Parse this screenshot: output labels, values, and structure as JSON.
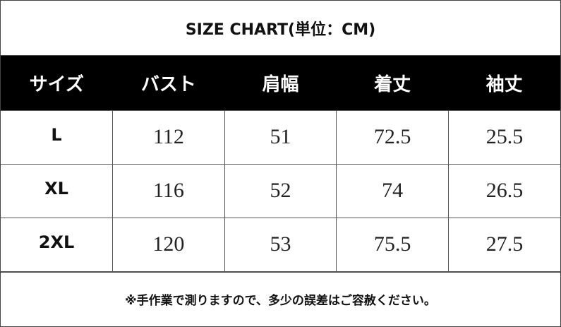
{
  "title": "SIZE CHART(単位：CM)",
  "table": {
    "header": [
      "サイズ",
      "バスト",
      "肩幅",
      "着丈",
      "袖丈"
    ],
    "rows": [
      [
        "L",
        112,
        51,
        72.5,
        25.5
      ],
      [
        "XL",
        116,
        52,
        74,
        26.5
      ],
      [
        "2XL",
        120,
        53,
        75.5,
        27.5
      ]
    ]
  },
  "note": "※手作業で測りますので、多少の誤差はご容赦ください。"
}
